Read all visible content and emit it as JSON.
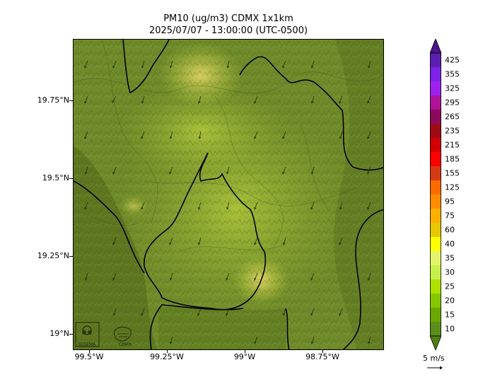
{
  "title": {
    "line1": "PM10 (ug/m3) CDMX 1x1km",
    "line2": "2025/07/07 - 13:00:00 (UTC-0500)"
  },
  "axes": {
    "y_ticks": [
      "19.75°N",
      "19.5°N",
      "19.25°N",
      "19°N"
    ],
    "x_ticks": [
      "99.5°W",
      "99.25°W",
      "99°W",
      "98.75°W"
    ]
  },
  "colorbar": {
    "labels": [
      "425",
      "355",
      "325",
      "295",
      "265",
      "235",
      "215",
      "185",
      "155",
      "125",
      "95",
      "75",
      "60",
      "40",
      "35",
      "30",
      "25",
      "20",
      "15",
      "10"
    ],
    "colors": [
      "#5b1fb0",
      "#7d22e8",
      "#a020f0",
      "#b0139a",
      "#8c0a5c",
      "#a00a14",
      "#d40000",
      "#ff0000",
      "#d43a14",
      "#ff6a00",
      "#ff8c00",
      "#ffb000",
      "#e8c800",
      "#ffff00",
      "#e4f46a",
      "#c8f04a",
      "#aee000",
      "#86c800",
      "#6aa800",
      "#5a8f1a"
    ]
  },
  "wind": {
    "label": "5 m/s"
  },
  "logos": {
    "left": "SEDEMA",
    "right": "CDMX"
  }
}
